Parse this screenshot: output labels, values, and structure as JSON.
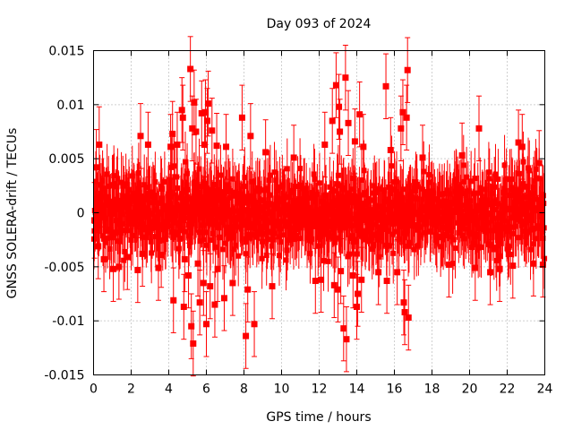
{
  "chart_data": {
    "type": "scatter",
    "title": "Day 093 of 2024",
    "xlabel": "GPS time / hours",
    "ylabel": "GNSS SOLERA-drift / TECUs",
    "xlim": [
      0,
      24
    ],
    "ylim": [
      -0.015,
      0.015
    ],
    "x_ticks": [
      0,
      2,
      4,
      6,
      8,
      10,
      12,
      14,
      16,
      18,
      20,
      22,
      24
    ],
    "x_tick_labels": [
      "0",
      "2",
      "4",
      "6",
      "8",
      "10",
      "12",
      "14",
      "16",
      "18",
      "20",
      "22",
      "24"
    ],
    "y_ticks": [
      -0.015,
      -0.01,
      -0.005,
      0,
      0.005,
      0.01,
      0.015
    ],
    "y_tick_labels": [
      "-0.015",
      "-0.01",
      "-0.005",
      "0",
      "0.005",
      "0.01",
      "0.015"
    ],
    "grid": true,
    "marker": "square",
    "error_bars": true,
    "color": "#ff0000",
    "series": [
      {
        "points": [
          {
            "x": 0.05,
            "y": -0.0007,
            "err": 0.0035
          },
          {
            "x": 0.15,
            "y": 0.0042,
            "err": 0.0035
          },
          {
            "x": 0.25,
            "y": -0.0031,
            "err": 0.003
          },
          {
            "x": 0.3,
            "y": 0.0063,
            "err": 0.0035
          },
          {
            "x": 0.55,
            "y": -0.0043,
            "err": 0.003
          },
          {
            "x": 1.05,
            "y": -0.0052,
            "err": 0.003
          },
          {
            "x": 1.35,
            "y": -0.005,
            "err": 0.003
          },
          {
            "x": 1.8,
            "y": -0.0041,
            "err": 0.003
          },
          {
            "x": 2.35,
            "y": -0.0053,
            "err": 0.003
          },
          {
            "x": 2.5,
            "y": 0.0071,
            "err": 0.003
          },
          {
            "x": 2.6,
            "y": -0.0038,
            "err": 0.003
          },
          {
            "x": 2.9,
            "y": 0.0063,
            "err": 0.003
          },
          {
            "x": 3.45,
            "y": -0.0051,
            "err": 0.003
          },
          {
            "x": 3.6,
            "y": -0.0039,
            "err": 0.003
          },
          {
            "x": 4.1,
            "y": 0.0061,
            "err": 0.003
          },
          {
            "x": 4.2,
            "y": 0.0073,
            "err": 0.003
          },
          {
            "x": 4.25,
            "y": -0.0081,
            "err": 0.003
          },
          {
            "x": 4.45,
            "y": 0.0063,
            "err": 0.003
          },
          {
            "x": 4.7,
            "y": 0.0095,
            "err": 0.003
          },
          {
            "x": 4.75,
            "y": 0.0088,
            "err": 0.003
          },
          {
            "x": 4.8,
            "y": -0.0087,
            "err": 0.003
          },
          {
            "x": 4.85,
            "y": -0.0043,
            "err": 0.003
          },
          {
            "x": 5.05,
            "y": -0.0058,
            "err": 0.003
          },
          {
            "x": 5.15,
            "y": 0.0133,
            "err": 0.003
          },
          {
            "x": 5.2,
            "y": -0.0105,
            "err": 0.003
          },
          {
            "x": 5.25,
            "y": 0.0078,
            "err": 0.003
          },
          {
            "x": 5.3,
            "y": -0.0121,
            "err": 0.003
          },
          {
            "x": 5.35,
            "y": 0.0102,
            "err": 0.003
          },
          {
            "x": 5.45,
            "y": 0.0075,
            "err": 0.003
          },
          {
            "x": 5.55,
            "y": -0.0047,
            "err": 0.003
          },
          {
            "x": 5.65,
            "y": -0.0083,
            "err": 0.003
          },
          {
            "x": 5.75,
            "y": 0.0092,
            "err": 0.003
          },
          {
            "x": 5.85,
            "y": -0.0065,
            "err": 0.003
          },
          {
            "x": 5.9,
            "y": 0.0063,
            "err": 0.003
          },
          {
            "x": 5.95,
            "y": 0.0093,
            "err": 0.003
          },
          {
            "x": 6.0,
            "y": -0.0103,
            "err": 0.003
          },
          {
            "x": 6.05,
            "y": 0.0085,
            "err": 0.003
          },
          {
            "x": 6.1,
            "y": 0.0101,
            "err": 0.003
          },
          {
            "x": 6.2,
            "y": -0.0068,
            "err": 0.003
          },
          {
            "x": 6.3,
            "y": 0.0076,
            "err": 0.003
          },
          {
            "x": 6.45,
            "y": -0.0085,
            "err": 0.003
          },
          {
            "x": 6.55,
            "y": 0.0062,
            "err": 0.003
          },
          {
            "x": 6.6,
            "y": -0.0052,
            "err": 0.003
          },
          {
            "x": 6.95,
            "y": -0.0079,
            "err": 0.003
          },
          {
            "x": 7.05,
            "y": 0.0061,
            "err": 0.003
          },
          {
            "x": 7.4,
            "y": -0.0065,
            "err": 0.003
          },
          {
            "x": 7.9,
            "y": 0.0088,
            "err": 0.003
          },
          {
            "x": 8.1,
            "y": -0.0114,
            "err": 0.003
          },
          {
            "x": 8.2,
            "y": -0.0071,
            "err": 0.003
          },
          {
            "x": 8.35,
            "y": 0.0071,
            "err": 0.003
          },
          {
            "x": 8.55,
            "y": -0.0103,
            "err": 0.003
          },
          {
            "x": 9.15,
            "y": 0.0056,
            "err": 0.003
          },
          {
            "x": 9.5,
            "y": -0.0068,
            "err": 0.003
          },
          {
            "x": 10.65,
            "y": 0.0051,
            "err": 0.003
          },
          {
            "x": 11.8,
            "y": -0.0063,
            "err": 0.003
          },
          {
            "x": 12.1,
            "y": -0.0062,
            "err": 0.003
          },
          {
            "x": 12.3,
            "y": 0.0063,
            "err": 0.003
          },
          {
            "x": 12.7,
            "y": 0.0085,
            "err": 0.003
          },
          {
            "x": 12.8,
            "y": -0.0067,
            "err": 0.003
          },
          {
            "x": 12.9,
            "y": 0.0118,
            "err": 0.003
          },
          {
            "x": 13.0,
            "y": -0.0071,
            "err": 0.003
          },
          {
            "x": 13.05,
            "y": 0.0098,
            "err": 0.003
          },
          {
            "x": 13.1,
            "y": 0.0075,
            "err": 0.003
          },
          {
            "x": 13.15,
            "y": -0.0054,
            "err": 0.003
          },
          {
            "x": 13.3,
            "y": -0.0107,
            "err": 0.003
          },
          {
            "x": 13.4,
            "y": 0.0125,
            "err": 0.003
          },
          {
            "x": 13.45,
            "y": -0.0117,
            "err": 0.003
          },
          {
            "x": 13.55,
            "y": 0.0083,
            "err": 0.003
          },
          {
            "x": 13.8,
            "y": -0.0058,
            "err": 0.003
          },
          {
            "x": 13.9,
            "y": 0.0066,
            "err": 0.003
          },
          {
            "x": 14.0,
            "y": -0.0087,
            "err": 0.003
          },
          {
            "x": 14.05,
            "y": -0.0075,
            "err": 0.003
          },
          {
            "x": 14.15,
            "y": 0.0091,
            "err": 0.003
          },
          {
            "x": 14.25,
            "y": -0.0062,
            "err": 0.003
          },
          {
            "x": 14.35,
            "y": 0.0061,
            "err": 0.003
          },
          {
            "x": 15.15,
            "y": -0.0055,
            "err": 0.003
          },
          {
            "x": 15.55,
            "y": 0.0117,
            "err": 0.003
          },
          {
            "x": 15.6,
            "y": -0.0063,
            "err": 0.003
          },
          {
            "x": 15.8,
            "y": 0.0058,
            "err": 0.003
          },
          {
            "x": 16.15,
            "y": -0.0055,
            "err": 0.003
          },
          {
            "x": 16.35,
            "y": 0.0078,
            "err": 0.003
          },
          {
            "x": 16.45,
            "y": 0.0093,
            "err": 0.003
          },
          {
            "x": 16.5,
            "y": -0.0083,
            "err": 0.003
          },
          {
            "x": 16.55,
            "y": -0.0092,
            "err": 0.003
          },
          {
            "x": 16.65,
            "y": 0.0088,
            "err": 0.003
          },
          {
            "x": 16.7,
            "y": 0.0132,
            "err": 0.003
          },
          {
            "x": 16.75,
            "y": -0.0097,
            "err": 0.003
          },
          {
            "x": 17.5,
            "y": 0.0051,
            "err": 0.003
          },
          {
            "x": 18.9,
            "y": -0.0048,
            "err": 0.003
          },
          {
            "x": 19.6,
            "y": 0.0053,
            "err": 0.003
          },
          {
            "x": 20.3,
            "y": -0.0051,
            "err": 0.003
          },
          {
            "x": 20.5,
            "y": 0.0078,
            "err": 0.003
          },
          {
            "x": 21.1,
            "y": -0.0055,
            "err": 0.003
          },
          {
            "x": 21.6,
            "y": -0.0052,
            "err": 0.003
          },
          {
            "x": 22.3,
            "y": -0.0049,
            "err": 0.003
          },
          {
            "x": 22.6,
            "y": 0.0065,
            "err": 0.003
          },
          {
            "x": 22.8,
            "y": 0.0061,
            "err": 0.003
          },
          {
            "x": 23.4,
            "y": -0.0047,
            "err": 0.003
          },
          {
            "x": 23.7,
            "y": 0.0046,
            "err": 0.003
          },
          {
            "x": 23.9,
            "y": -0.0048,
            "err": 0.003
          }
        ]
      }
    ]
  }
}
